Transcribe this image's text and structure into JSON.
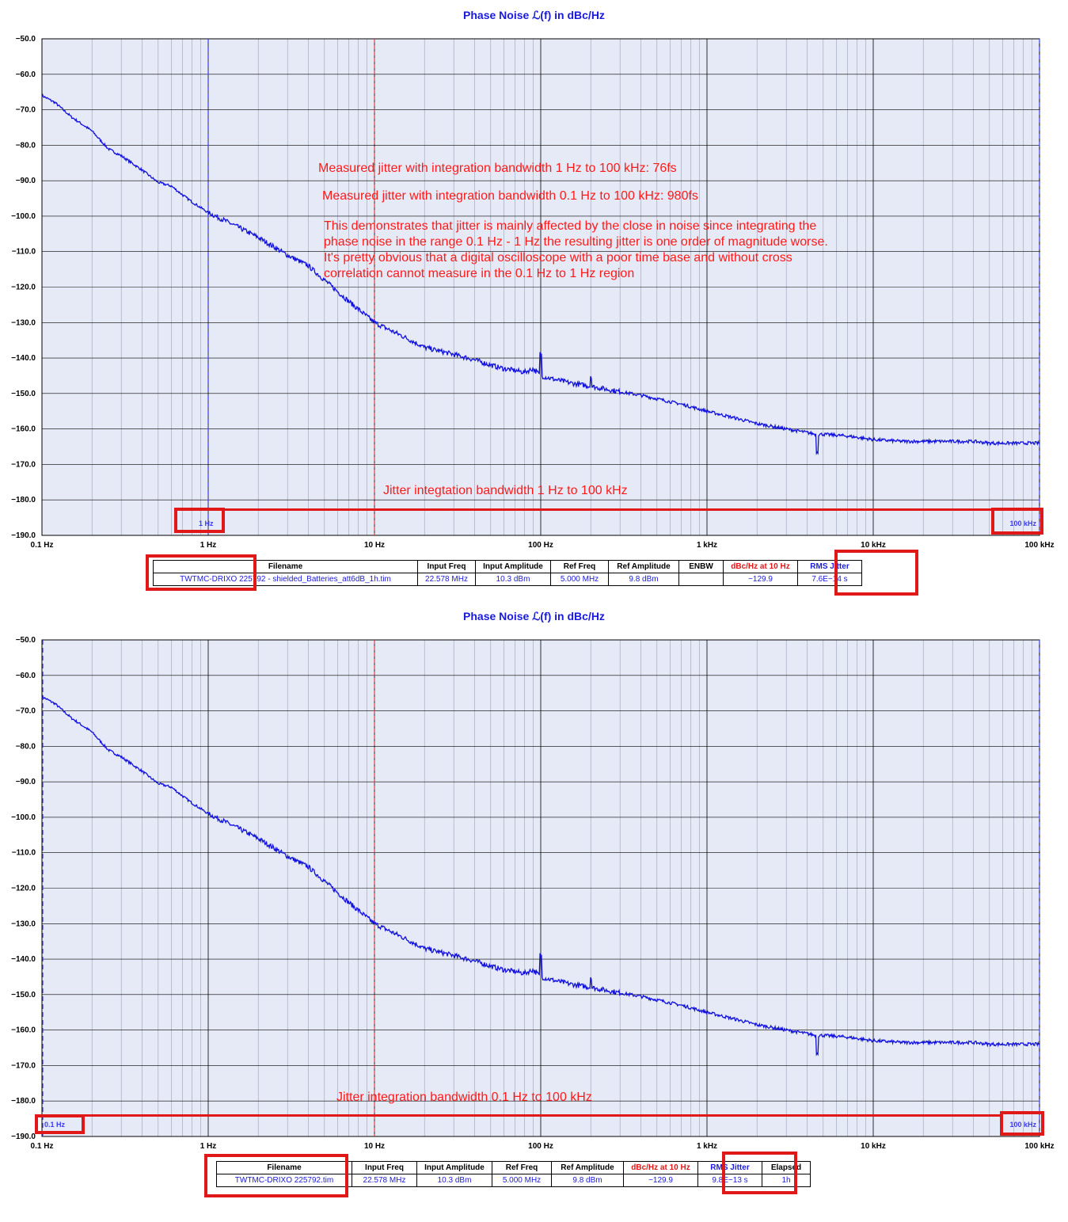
{
  "colors": {
    "plot_bg": "#e6eaf6",
    "grid_major": "#000000",
    "grid_minor": "#9aa0b8",
    "trace": "#1010dd",
    "axis_text": "#000000",
    "title_text": "#1a1adb",
    "annotation": "#ff1a1a",
    "integration_marker": "#3a3af0",
    "ref_marker": "#dd2222"
  },
  "x_axis": {
    "min": 0.1,
    "max": 100000,
    "scale": "log",
    "tick_labels": [
      "0.1 Hz",
      "1 Hz",
      "10 Hz",
      "100 Hz",
      "1 kHz",
      "10 kHz",
      "100 kHz"
    ]
  },
  "y_axis": {
    "min": -190,
    "max": -50,
    "tick_labels": [
      "-50.0",
      "-60.0",
      "-70.0",
      "-80.0",
      "-90.0",
      "-100.0",
      "-110.0",
      "-120.0",
      "-130.0",
      "-140.0",
      "-150.0",
      "-160.0",
      "-170.0",
      "-180.0",
      "-190.0"
    ]
  },
  "panels": [
    {
      "title": "Phase Noise ℒ(f) in dBc/Hz",
      "annotations": {
        "line1": "Measured jitter with integration bandwidth 1 Hz to 100 kHz: 76fs",
        "line2": "Measured jitter with integration bandwidth 0.1 Hz to 100 kHz: 980fs",
        "paragraph": [
          "This demonstrates that jitter is mainly affected by the close in noise since integrating the",
          "phase noise in the range 0.1 Hz - 1 Hz the resulting jitter is one order of magnitude worse.",
          "It's pretty obvious that a digital oscilloscope with a poor time base and without cross",
          "correlation cannot measure in the 0.1 Hz to 1 Hz region"
        ],
        "bandwidth": "Jitter integtation bandwidth 1 Hz to 100 kHz"
      },
      "integration": {
        "start_label": "1 Hz",
        "end_label": "100 kHz",
        "start_hz": 1,
        "end_hz": 100000
      },
      "table": {
        "headers": [
          "Filename",
          "Input Freq",
          "Input Amplitude",
          "Ref Freq",
          "Ref Amplitude",
          "ENBW",
          "dBc/Hz at 10 Hz",
          "RMS Jitter"
        ],
        "values": [
          "TWTMC-DRIXO  225792 - shielded_Batteries_att6dB_1h.tim",
          "22.578 MHz",
          "10.3 dBm",
          "5.000 MHz",
          "9.8 dBm",
          "",
          "−129.9",
          "7.6E−14 s"
        ]
      }
    },
    {
      "title": "Phase Noise ℒ(f) in dBc/Hz",
      "annotations": {
        "bandwidth": "Jitter integration bandwidth 0.1 Hz to 100 kHz"
      },
      "integration": {
        "start_label": "0.1 Hz",
        "end_label": "100 kHz",
        "start_hz": 0.1,
        "end_hz": 100000
      },
      "table": {
        "headers": [
          "Filename",
          "Input Freq",
          "Input Amplitude",
          "Ref Freq",
          "Ref Amplitude",
          "dBc/Hz at 10 Hz",
          "RMS Jitter",
          "Elapsed"
        ],
        "values": [
          "TWTMC-DRIXO 225792.tim",
          "22.578 MHz",
          "10.3 dBm",
          "5.000 MHz",
          "9.8 dBm",
          "−129.9",
          "9.8E−13 s",
          "1h"
        ]
      }
    }
  ],
  "chart_data": [
    {
      "type": "line",
      "title": "Phase Noise ℒ(f) in dBc/Hz",
      "xscale": "log",
      "xlim": [
        0.1,
        100000
      ],
      "ylim": [
        -190,
        -50
      ],
      "series": [
        {
          "x": [
            0.1,
            0.12,
            0.15,
            0.2,
            0.25,
            0.3,
            0.4,
            0.5,
            0.6,
            0.7,
            0.8,
            1.0,
            1.5,
            2,
            3,
            4,
            5,
            7,
            10,
            15,
            20,
            30,
            40,
            50,
            60,
            70,
            80,
            90,
            100,
            120,
            150,
            200,
            300,
            400,
            500,
            700,
            1000,
            1500,
            2000,
            3000,
            4000,
            4500,
            5000,
            7000,
            10000,
            15000,
            20000,
            30000,
            40000,
            50000,
            70000,
            100000
          ],
          "y": [
            -66,
            -68,
            -72,
            -76,
            -81,
            -83,
            -87,
            -90.5,
            -91.5,
            -94,
            -96,
            -99,
            -103,
            -106,
            -111,
            -114,
            -118,
            -124,
            -130,
            -134,
            -137,
            -139,
            -140.5,
            -142,
            -143,
            -143.5,
            -144,
            -143,
            -145,
            -146,
            -147,
            -148,
            -149.5,
            -150.5,
            -151.5,
            -153,
            -155,
            -157,
            -158.5,
            -160,
            -161,
            -161.5,
            -161.5,
            -162,
            -163,
            -163.5,
            -163.5,
            -163.5,
            -163.5,
            -164,
            -164,
            -164
          ]
        }
      ],
      "ref_marker_hz": 10,
      "integration_hz": [
        1,
        100000
      ]
    },
    {
      "type": "line",
      "title": "Phase Noise ℒ(f) in dBc/Hz",
      "xscale": "log",
      "xlim": [
        0.1,
        100000
      ],
      "ylim": [
        -190,
        -50
      ],
      "series": [
        {
          "x": [
            0.1,
            0.12,
            0.15,
            0.2,
            0.25,
            0.3,
            0.4,
            0.5,
            0.6,
            0.7,
            0.8,
            1.0,
            1.5,
            2,
            3,
            4,
            5,
            7,
            10,
            15,
            20,
            30,
            40,
            50,
            60,
            70,
            80,
            90,
            100,
            120,
            150,
            200,
            300,
            400,
            500,
            700,
            1000,
            1500,
            2000,
            3000,
            4000,
            4500,
            5000,
            7000,
            10000,
            15000,
            20000,
            30000,
            40000,
            50000,
            70000,
            100000
          ],
          "y": [
            -66,
            -68,
            -72,
            -76,
            -81,
            -83,
            -87,
            -90.5,
            -91.5,
            -94,
            -96,
            -99,
            -103,
            -106,
            -111,
            -114,
            -118,
            -124,
            -130,
            -134,
            -137,
            -139,
            -140.5,
            -142,
            -143,
            -143.5,
            -144,
            -143,
            -145,
            -146,
            -147,
            -148,
            -149.5,
            -150.5,
            -151.5,
            -153,
            -155,
            -157,
            -158.5,
            -160,
            -161,
            -161.5,
            -161.5,
            -162,
            -163,
            -163.5,
            -163.5,
            -163.5,
            -163.5,
            -164,
            -164,
            -164
          ]
        }
      ],
      "ref_marker_hz": 10,
      "integration_hz": [
        0.1,
        100000
      ]
    }
  ]
}
